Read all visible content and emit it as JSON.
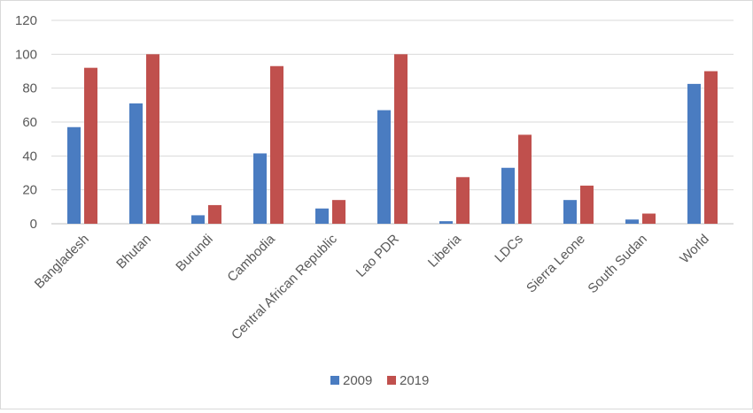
{
  "chart_data": {
    "type": "bar",
    "categories": [
      "Bangladesh",
      "Bhutan",
      "Burundi",
      "Cambodia",
      "Central African Republic",
      "Lao PDR",
      "Liberia",
      "LDCs",
      "Sierra Leone",
      "South Sudan",
      "World"
    ],
    "series": [
      {
        "name": "2009",
        "color": "#4a7cc1",
        "values": [
          57,
          71,
          5,
          41.5,
          9,
          67,
          1.5,
          33,
          14,
          2.5,
          82.5
        ]
      },
      {
        "name": "2019",
        "color": "#c0504d",
        "values": [
          92,
          100,
          11,
          93,
          14,
          100,
          27.5,
          52.5,
          22.5,
          6,
          90
        ]
      }
    ],
    "ylim": [
      0,
      120
    ],
    "yticks": [
      0,
      20,
      40,
      60,
      80,
      100,
      120
    ],
    "grid": true,
    "legend_position": "bottom-center"
  }
}
